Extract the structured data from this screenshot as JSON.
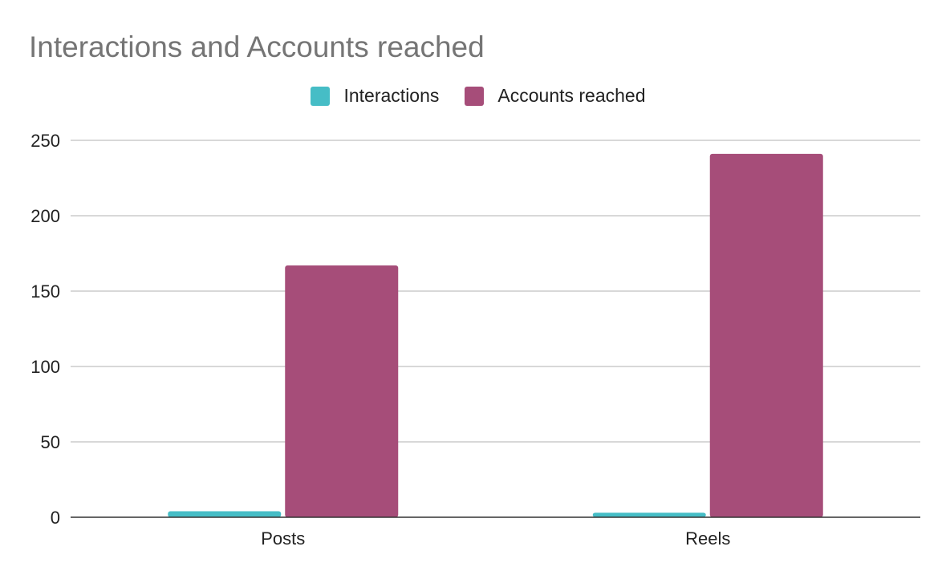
{
  "chart_data": {
    "type": "bar",
    "title": "Interactions and Accounts reached",
    "categories": [
      "Posts",
      "Reels"
    ],
    "series": [
      {
        "name": "Interactions",
        "color": "#46bdc6",
        "values": [
          4,
          3
        ]
      },
      {
        "name": "Accounts reached",
        "color": "#a64d79",
        "values": [
          167,
          241
        ]
      }
    ],
    "ylim": [
      0,
      250
    ],
    "yticks": [
      0,
      50,
      100,
      150,
      200,
      250
    ],
    "ytick_labels": [
      "0",
      "50",
      "100",
      "150",
      "200",
      "250"
    ],
    "xlabel": "",
    "ylabel": "",
    "grid": true,
    "legend_position": "top"
  }
}
